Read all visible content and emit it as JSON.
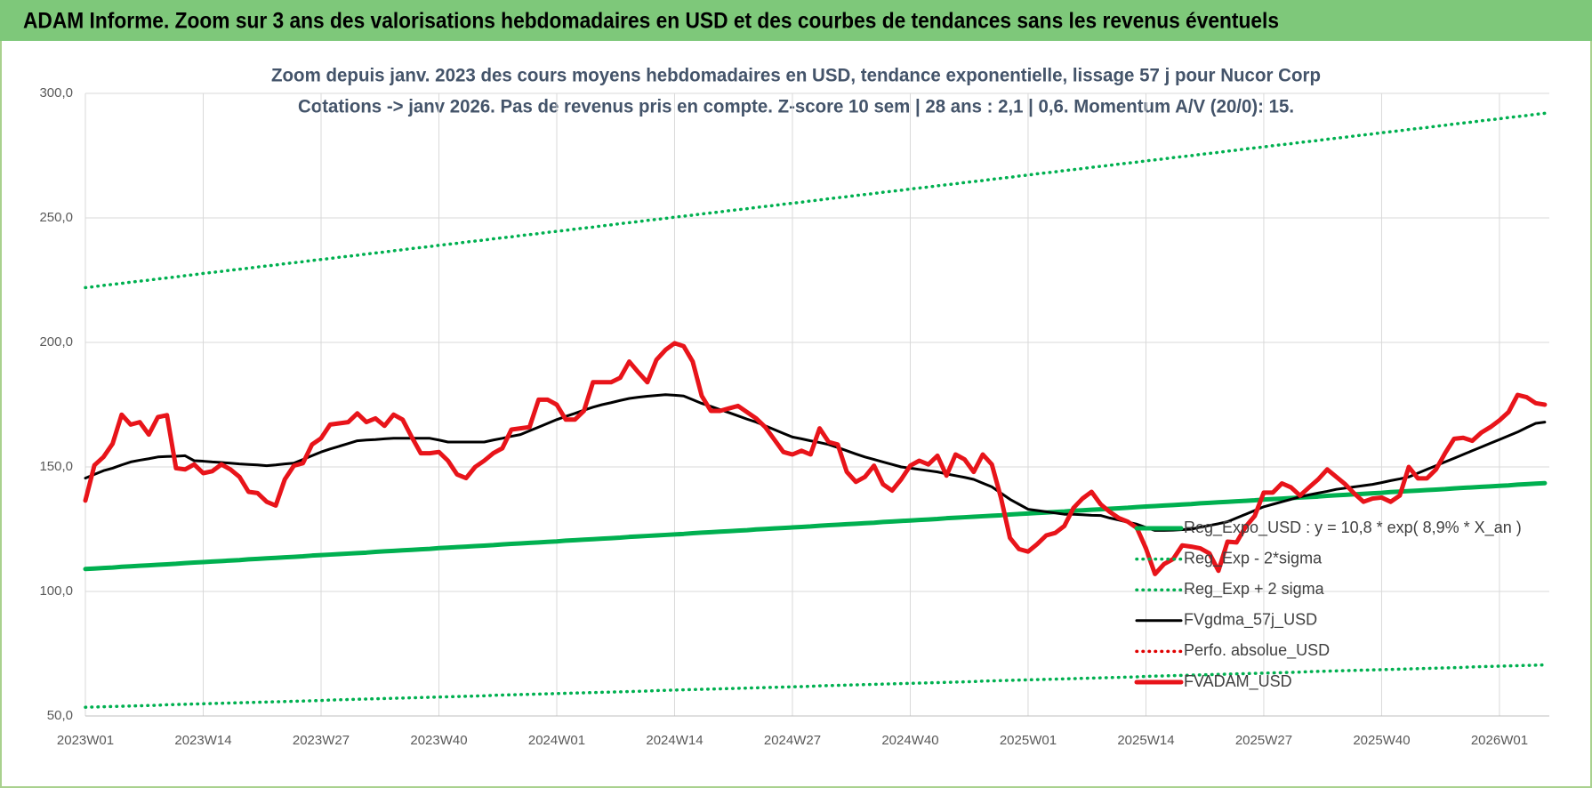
{
  "header": "ADAM Informe. Zoom sur 3 ans des valorisations hebdomadaires en USD et des courbes de tendances sans les revenus éventuels",
  "chart_data": {
    "type": "line",
    "title": "Zoom depuis janv. 2023 des cours moyens hebdomadaires en USD, tendance exponentielle, lissage 57 j pour Nucor Corp",
    "subtitle": "Cotations -> janv 2026. Pas de revenus pris en compte. Z-score 10 sem | 28 ans : 2,1 | 0,6. Momentum A/V (20/0): 15.",
    "categories": [
      "2023W01",
      null,
      null,
      null,
      null,
      null,
      null,
      null,
      null,
      null,
      null,
      null,
      null,
      "2023W14",
      null,
      null,
      null,
      null,
      null,
      null,
      null,
      null,
      null,
      null,
      null,
      null,
      "2023W27",
      null,
      null,
      null,
      null,
      null,
      null,
      null,
      null,
      null,
      null,
      null,
      null,
      "2023W40",
      null,
      null,
      null,
      null,
      null,
      null,
      null,
      null,
      null,
      null,
      null,
      null,
      "2024W01",
      null,
      null,
      null,
      null,
      null,
      null,
      null,
      null,
      null,
      null,
      null,
      null,
      "2024W14",
      null,
      null,
      null,
      null,
      null,
      null,
      null,
      null,
      null,
      null,
      null,
      null,
      "2024W27",
      null,
      null,
      null,
      null,
      null,
      null,
      null,
      null,
      null,
      null,
      null,
      null,
      "2024W40",
      null,
      null,
      null,
      null,
      null,
      null,
      null,
      null,
      null,
      null,
      null,
      null,
      "2025W01",
      null,
      null,
      null,
      null,
      null,
      null,
      null,
      null,
      null,
      null,
      null,
      null,
      "2025W14",
      null,
      null,
      null,
      null,
      null,
      null,
      null,
      null,
      null,
      null,
      null,
      null,
      "2025W27",
      null,
      null,
      null,
      null,
      null,
      null,
      null,
      null,
      null,
      null,
      null,
      null,
      "2025W40",
      null,
      null,
      null,
      null,
      null,
      null,
      null,
      null,
      null,
      null,
      null,
      null,
      "2026W01",
      null,
      null,
      null,
      null,
      null
    ],
    "ylim": [
      50,
      300
    ],
    "yticks": [
      {
        "value": 50,
        "label": "50,0"
      },
      {
        "value": 100,
        "label": "100,0"
      },
      {
        "value": 150,
        "label": "150,0"
      },
      {
        "value": 200,
        "label": "200,0"
      },
      {
        "value": 250,
        "label": "250,0"
      },
      {
        "value": 300,
        "label": "300,0"
      }
    ],
    "grid": true,
    "legend": "lower right",
    "series": [
      {
        "name": "Reg_Expo_USD : y = 10,8 * exp( 8,9% *  X_an )",
        "color": "#00b050",
        "style": "thick",
        "values": [
          109.0,
          109.2,
          109.4,
          109.6,
          109.9,
          110.1,
          110.3,
          110.5,
          110.7,
          110.9,
          111.1,
          111.4,
          111.6,
          111.8,
          112.0,
          112.2,
          112.4,
          112.6,
          112.9,
          113.1,
          113.3,
          113.5,
          113.7,
          113.9,
          114.1,
          114.4,
          114.6,
          114.8,
          115.0,
          115.2,
          115.4,
          115.6,
          115.9,
          116.1,
          116.3,
          116.5,
          116.7,
          116.9,
          117.1,
          117.4,
          117.6,
          117.8,
          118.0,
          118.2,
          118.4,
          118.6,
          118.9,
          119.1,
          119.3,
          119.5,
          119.7,
          119.9,
          120.1,
          120.4,
          120.6,
          120.8,
          121.0,
          121.2,
          121.4,
          121.6,
          121.9,
          122.1,
          122.3,
          122.5,
          122.7,
          122.9,
          123.1,
          123.4,
          123.6,
          123.8,
          124.0,
          124.2,
          124.4,
          124.6,
          124.9,
          125.1,
          125.3,
          125.5,
          125.7,
          125.9,
          126.1,
          126.4,
          126.6,
          126.8,
          127.0,
          127.2,
          127.4,
          127.6,
          127.9,
          128.1,
          128.3,
          128.5,
          128.7,
          128.9,
          129.1,
          129.4,
          129.6,
          129.8,
          130.0,
          130.2,
          130.4,
          130.6,
          130.9,
          131.1,
          131.3,
          131.5,
          131.7,
          131.9,
          132.1,
          132.4,
          132.6,
          132.8,
          133.0,
          133.2,
          133.4,
          133.6,
          133.9,
          134.1,
          134.3,
          134.5,
          134.7,
          134.9,
          135.1,
          135.4,
          135.6,
          135.8,
          136.0,
          136.2,
          136.4,
          136.6,
          136.9,
          137.1,
          137.3,
          137.5,
          137.7,
          137.9,
          138.1,
          138.4,
          138.6,
          138.8,
          139.0,
          139.2,
          139.4,
          139.6,
          139.9,
          140.1,
          140.3,
          140.5,
          140.7,
          140.9,
          141.1,
          141.4,
          141.6,
          141.8,
          142.0,
          142.2,
          142.4,
          142.6,
          142.9,
          143.1,
          143.3,
          143.5
        ]
      },
      {
        "name": "Reg_Exp - 2*sigma",
        "color": "#00b050",
        "style": "dotted",
        "values": [
          53.5,
          53.6,
          53.7,
          53.8,
          53.9,
          54.0,
          54.1,
          54.2,
          54.3,
          54.5,
          54.6,
          54.7,
          54.8,
          54.9,
          55.0,
          55.1,
          55.2,
          55.3,
          55.4,
          55.5,
          55.6,
          55.7,
          55.8,
          55.9,
          56.0,
          56.1,
          56.2,
          56.4,
          56.5,
          56.6,
          56.7,
          56.8,
          56.9,
          57.0,
          57.1,
          57.2,
          57.3,
          57.4,
          57.5,
          57.6,
          57.7,
          57.8,
          57.9,
          58.0,
          58.1,
          58.3,
          58.4,
          58.5,
          58.6,
          58.7,
          58.8,
          58.9,
          59.0,
          59.1,
          59.2,
          59.3,
          59.4,
          59.5,
          59.6,
          59.7,
          59.8,
          59.9,
          60.0,
          60.2,
          60.3,
          60.4,
          60.5,
          60.6,
          60.7,
          60.8,
          60.9,
          61.0,
          61.1,
          61.2,
          61.3,
          61.4,
          61.5,
          61.6,
          61.7,
          61.8,
          61.9,
          62.1,
          62.2,
          62.3,
          62.4,
          62.5,
          62.6,
          62.7,
          62.8,
          62.9,
          63.0,
          63.1,
          63.2,
          63.3,
          63.4,
          63.5,
          63.6,
          63.7,
          63.8,
          64.0,
          64.1,
          64.2,
          64.3,
          64.4,
          64.5,
          64.6,
          64.7,
          64.8,
          64.9,
          65.0,
          65.1,
          65.2,
          65.3,
          65.4,
          65.5,
          65.6,
          65.7,
          65.9,
          66.0,
          66.1,
          66.2,
          66.3,
          66.4,
          66.5,
          66.6,
          66.7,
          66.8,
          66.9,
          67.0,
          67.1,
          67.2,
          67.3,
          67.4,
          67.5,
          67.6,
          67.8,
          67.9,
          68.0,
          68.1,
          68.2,
          68.3,
          68.4,
          68.5,
          68.6,
          68.7,
          68.8,
          68.9,
          69.0,
          69.1,
          69.2,
          69.3,
          69.4,
          69.5,
          69.7,
          69.8,
          69.9,
          70.0,
          70.1,
          70.2,
          70.3,
          70.4,
          70.5
        ]
      },
      {
        "name": "Reg_Exp + 2 sigma",
        "color": "#00b050",
        "style": "dotted",
        "values": [
          222.0,
          222.4,
          222.9,
          223.3,
          223.7,
          224.2,
          224.6,
          225.0,
          225.5,
          225.9,
          226.3,
          226.8,
          227.2,
          227.7,
          228.1,
          228.5,
          229.0,
          229.4,
          229.8,
          230.3,
          230.7,
          231.1,
          231.6,
          232.0,
          232.4,
          232.9,
          233.3,
          233.7,
          234.2,
          234.6,
          235.0,
          235.5,
          235.9,
          236.3,
          236.8,
          237.2,
          237.7,
          238.1,
          238.5,
          239.0,
          239.4,
          239.8,
          240.3,
          240.7,
          241.1,
          241.6,
          242.0,
          242.4,
          242.9,
          243.3,
          243.7,
          244.2,
          244.6,
          245.0,
          245.5,
          245.9,
          246.3,
          246.8,
          247.2,
          247.7,
          248.1,
          248.5,
          249.0,
          249.4,
          249.8,
          250.3,
          250.7,
          251.1,
          251.6,
          252.0,
          252.4,
          252.9,
          253.3,
          253.7,
          254.2,
          254.6,
          255.0,
          255.5,
          255.9,
          256.3,
          256.8,
          257.2,
          257.7,
          258.1,
          258.5,
          259.0,
          259.4,
          259.8,
          260.3,
          260.7,
          261.1,
          261.6,
          262.0,
          262.4,
          262.9,
          263.3,
          263.7,
          264.2,
          264.6,
          265.0,
          265.5,
          265.9,
          266.3,
          266.8,
          267.2,
          267.7,
          268.1,
          268.5,
          269.0,
          269.4,
          269.8,
          270.3,
          270.7,
          271.1,
          271.6,
          272.0,
          272.4,
          272.9,
          273.3,
          273.7,
          274.2,
          274.6,
          275.0,
          275.5,
          275.9,
          276.3,
          276.8,
          277.2,
          277.7,
          278.1,
          278.5,
          279.0,
          279.4,
          279.8,
          280.3,
          280.7,
          281.1,
          281.6,
          282.0,
          282.4,
          282.9,
          283.3,
          283.7,
          284.2,
          284.6,
          285.0,
          285.5,
          285.9,
          286.3,
          286.8,
          287.2,
          287.7,
          288.1,
          288.5,
          289.0,
          289.4,
          289.8,
          290.3,
          290.7,
          291.1,
          291.6,
          292.0
        ]
      },
      {
        "name": "FVgdma_57j_USD",
        "color": "#000000",
        "style": "solid",
        "values": [
          145.5,
          147,
          148.5,
          149.5,
          150.8,
          152,
          152.7,
          153.3,
          154,
          154.2,
          154.3,
          154.5,
          152.5,
          152.3,
          152,
          151.8,
          151.5,
          151.2,
          151,
          150.8,
          150.5,
          150.8,
          151.2,
          151.5,
          153,
          154.5,
          156,
          157.2,
          158.3,
          159.4,
          160.5,
          160.8,
          161,
          161.3,
          161.5,
          161.5,
          161.5,
          161.5,
          161.5,
          160.8,
          160,
          160,
          160,
          160,
          160,
          160.8,
          161.5,
          162.3,
          163,
          164.5,
          166,
          167.5,
          169,
          170.3,
          171.5,
          172.8,
          174,
          175,
          175.8,
          176.7,
          177.5,
          178,
          178.4,
          178.7,
          179,
          178.8,
          178.5,
          177,
          175.5,
          174.3,
          173,
          171.8,
          170.5,
          169.2,
          168,
          166.5,
          165,
          163.5,
          162,
          161.3,
          160.5,
          159.8,
          159,
          157.8,
          156.5,
          155.2,
          154,
          153,
          152,
          151,
          150,
          149.5,
          149,
          148.5,
          148,
          147.2,
          146.5,
          145.8,
          145,
          143.5,
          142,
          139.5,
          137,
          135,
          133,
          132.5,
          132,
          131.5,
          131,
          131,
          130.8,
          130.6,
          130.5,
          129.5,
          128.7,
          127.8,
          127,
          125.7,
          124.5,
          124.5,
          124.6,
          124.8,
          125,
          125.8,
          126.5,
          127.2,
          128,
          129.5,
          131,
          132.5,
          134,
          135,
          136,
          137,
          138,
          138.8,
          139.5,
          140.2,
          141,
          141.5,
          142,
          142.5,
          143,
          143.7,
          144.5,
          145.2,
          146,
          147.5,
          149,
          150.5,
          152,
          153.5,
          155,
          156.5,
          158,
          159.5,
          161,
          162.5,
          164,
          165.8,
          167.5,
          168
        ]
      },
      {
        "name": "Perfo. absolue_USD",
        "color": "#e00000",
        "style": "dotted"
      },
      {
        "name": "FVADAM_USD",
        "color": "#e8141a",
        "style": "thick",
        "values": [
          136.5,
          150.7,
          154,
          159.3,
          171,
          167,
          168,
          163,
          170,
          170.8,
          149.5,
          149,
          151,
          147.5,
          148.3,
          151,
          149,
          146,
          140,
          139.5,
          136,
          134.5,
          145,
          150.5,
          151.5,
          159,
          161.5,
          167,
          167.5,
          168,
          171.5,
          168,
          169.5,
          166.5,
          171,
          169,
          162,
          155.5,
          155.5,
          156,
          152.5,
          147,
          145.5,
          150,
          152.5,
          155.5,
          157.5,
          165,
          165.5,
          166,
          177,
          177,
          175,
          169,
          169,
          172.5,
          184,
          184,
          184,
          185.8,
          192.3,
          188,
          184,
          193,
          197,
          199.7,
          198.5,
          192.3,
          178.5,
          172.5,
          172.5,
          173.5,
          174.5,
          172,
          169.5,
          166,
          161,
          156,
          155,
          156.5,
          155,
          165.5,
          160,
          159,
          148,
          144,
          146,
          150.5,
          143,
          140.5,
          145,
          150.5,
          152.5,
          151,
          154.5,
          146.5,
          155,
          153,
          148,
          155,
          151,
          137.7,
          121.5,
          117,
          116,
          119,
          122.5,
          123.5,
          126.3,
          133.5,
          137.3,
          140,
          135,
          132,
          129.5,
          128,
          125.5,
          117.3,
          107,
          111,
          113,
          118.5,
          118,
          117.3,
          115.3,
          108.3,
          120,
          119.7,
          126,
          130.3,
          139.7,
          139.7,
          143.4,
          141.8,
          138.5,
          141.8,
          145,
          149,
          146,
          143,
          139.3,
          136,
          137.3,
          137.7,
          136,
          138.5,
          150,
          145.4,
          145.4,
          149,
          155.5,
          161.3,
          161.7,
          160.5,
          163.8,
          166,
          168.7,
          172,
          178.9,
          178,
          175.6,
          175
        ]
      }
    ]
  }
}
